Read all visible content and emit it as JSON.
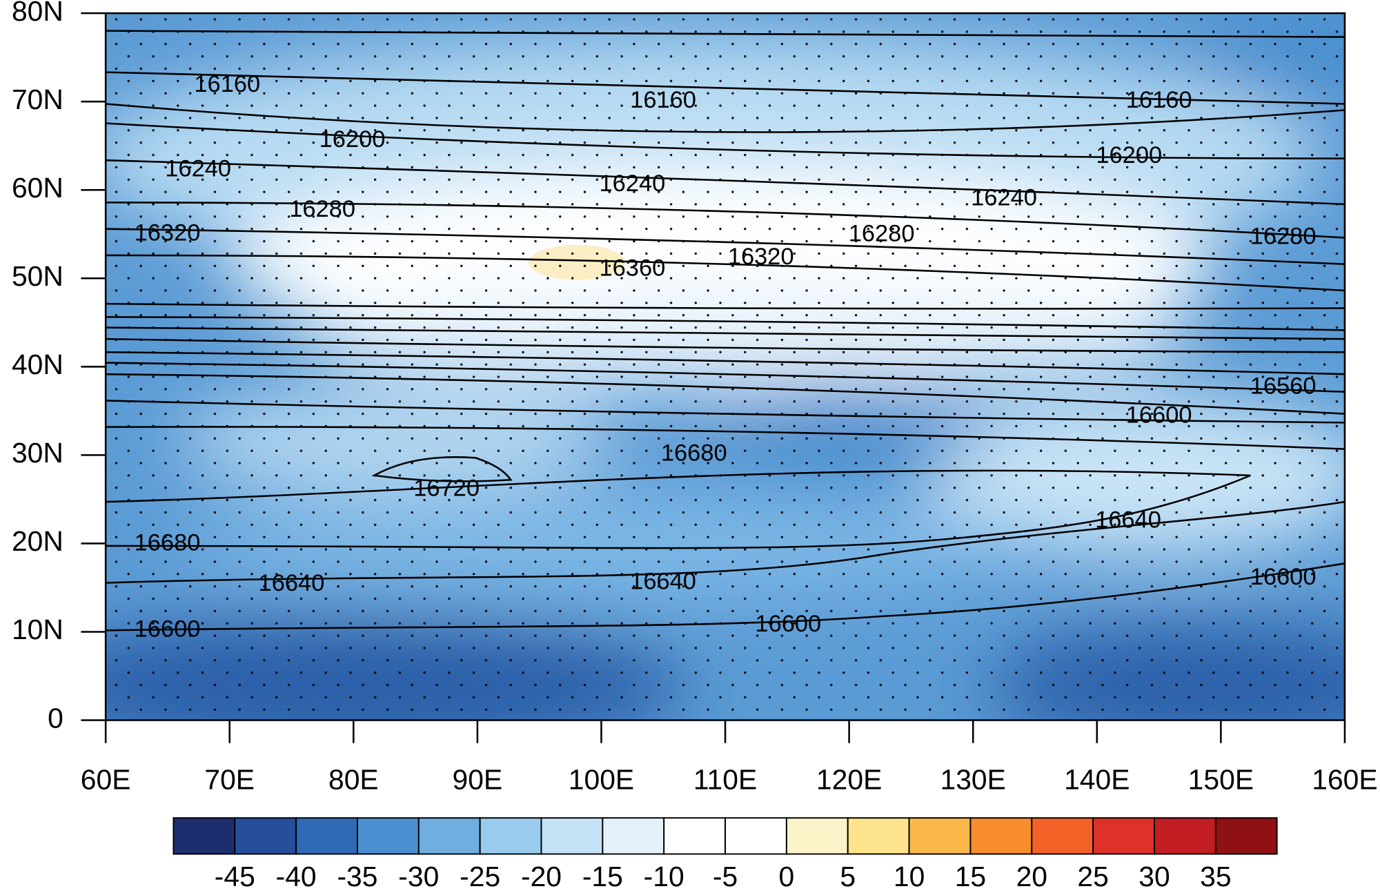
{
  "map": {
    "lat_labels": [
      "80N",
      "70N",
      "60N",
      "50N",
      "40N",
      "30N",
      "20N",
      "10N",
      "0"
    ],
    "lon_labels": [
      "60E",
      "70E",
      "80E",
      "90E",
      "100E",
      "110E",
      "120E",
      "130E",
      "140E",
      "150E",
      "160E"
    ],
    "contour_labels": [
      16160,
      16160,
      16160,
      16200,
      16200,
      16240,
      16240,
      16240,
      16280,
      16280,
      16280,
      16320,
      16320,
      16360,
      16560,
      16600,
      16680,
      16720,
      16680,
      16640,
      16640,
      16640,
      16600,
      16600,
      16600
    ]
  },
  "colorbar": {
    "colors": [
      "#1c2e6e",
      "#254f9a",
      "#2f6bb5",
      "#4a8fcf",
      "#6eaee0",
      "#99cbee",
      "#c4e2f6",
      "#e4f1fb",
      "#ffffff",
      "#ffffff",
      "#fdf3c9",
      "#fde38c",
      "#fbb84a",
      "#f88d2e",
      "#f36127",
      "#de3128",
      "#c11d22",
      "#8f1114"
    ],
    "ticks": [
      -45,
      -40,
      -35,
      -30,
      -25,
      -20,
      -15,
      -10,
      -5,
      0,
      5,
      10,
      15,
      20,
      25,
      30,
      35
    ]
  }
}
